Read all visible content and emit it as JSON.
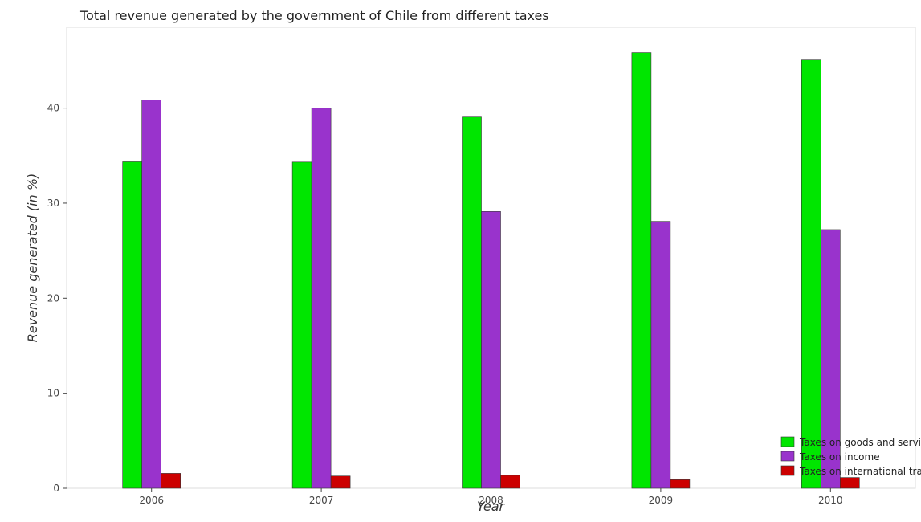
{
  "chart_data": {
    "type": "bar",
    "title": "Total revenue generated by the government of Chile from different taxes",
    "xlabel": "Year",
    "ylabel": "Revenue generated (in %)",
    "categories": [
      "2006",
      "2007",
      "2008",
      "2009",
      "2010"
    ],
    "series": [
      {
        "name": "Taxes on goods and services",
        "color": "#00e600",
        "values": [
          34.35,
          34.32,
          39.06,
          45.83,
          45.06
        ]
      },
      {
        "name": "Taxes on income",
        "color": "#9933cc",
        "values": [
          40.86,
          39.99,
          29.12,
          28.08,
          27.21
        ]
      },
      {
        "name": "Taxes on international trade",
        "color": "#cc0000",
        "values": [
          1.57,
          1.29,
          1.36,
          0.9,
          1.13
        ]
      }
    ],
    "ylim": [
      0,
      48.5
    ],
    "yticks": [
      0,
      10,
      20,
      30,
      40
    ],
    "legend_position": "bottom-right",
    "grid": false
  }
}
